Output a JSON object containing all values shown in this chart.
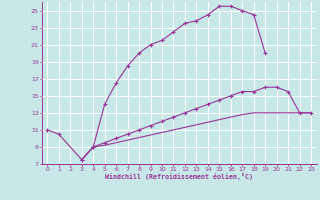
{
  "background_color": "#c8e8e8",
  "grid_color": "#ffffff",
  "line_color": "#993399",
  "xlabel": "Windchill (Refroidissement éolien,°C)",
  "xlim": [
    -0.5,
    23.5
  ],
  "ylim": [
    7,
    26
  ],
  "yticks": [
    7,
    9,
    11,
    13,
    15,
    17,
    19,
    21,
    23,
    25
  ],
  "xticks": [
    0,
    1,
    2,
    3,
    4,
    5,
    6,
    7,
    8,
    9,
    10,
    11,
    12,
    13,
    14,
    15,
    16,
    17,
    18,
    19,
    20,
    21,
    22,
    23
  ],
  "curve_upper_x": [
    0,
    1,
    3,
    4,
    5,
    6,
    7,
    8,
    9,
    10,
    11,
    12,
    13,
    14,
    15,
    16,
    17,
    18,
    19
  ],
  "curve_upper_y": [
    11.0,
    10.5,
    7.5,
    9.0,
    14.0,
    16.5,
    18.5,
    20.0,
    21.0,
    21.5,
    22.5,
    23.5,
    23.8,
    24.5,
    25.5,
    25.5,
    25.0,
    24.5,
    20.0
  ],
  "curve_mid_x": [
    3,
    4,
    5,
    6,
    7,
    8,
    9,
    10,
    11,
    12,
    13,
    14,
    15,
    16,
    17,
    18,
    19,
    20,
    21,
    22,
    23
  ],
  "curve_mid_y": [
    7.5,
    9.0,
    9.5,
    10.0,
    10.5,
    11.0,
    11.5,
    12.0,
    12.5,
    13.0,
    13.5,
    14.0,
    14.5,
    15.0,
    15.5,
    15.5,
    16.0,
    16.0,
    15.5,
    13.0,
    13.0
  ],
  "curve_low_x": [
    3,
    4,
    5,
    6,
    7,
    8,
    9,
    10,
    11,
    12,
    13,
    14,
    15,
    16,
    17,
    18,
    19,
    20,
    21,
    22,
    23
  ],
  "curve_low_y": [
    7.5,
    9.0,
    9.2,
    9.5,
    9.8,
    10.1,
    10.4,
    10.7,
    11.0,
    11.3,
    11.6,
    11.9,
    12.2,
    12.5,
    12.8,
    13.0,
    13.0,
    13.0,
    13.0,
    13.0,
    13.0
  ]
}
